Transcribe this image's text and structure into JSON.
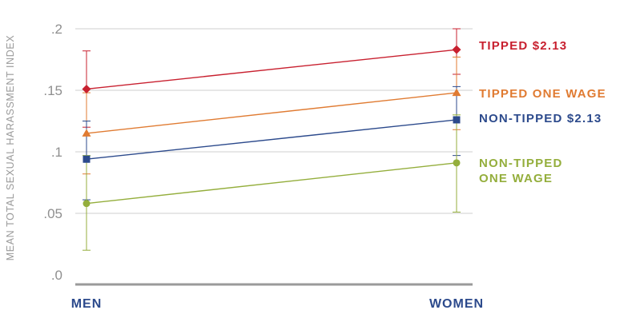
{
  "chart_data": {
    "type": "line",
    "ylabel": "MEAN TOTAL SEXUAL HARASSMENT INDEX",
    "xlabel": "",
    "categories": [
      "MEN",
      "WOMEN"
    ],
    "ylim": [
      0,
      0.2
    ],
    "yticks": [
      {
        "value": 0,
        "label": ".0"
      },
      {
        "value": 0.05,
        "label": ".05"
      },
      {
        "value": 0.1,
        "label": ".1"
      },
      {
        "value": 0.15,
        "label": ".15"
      },
      {
        "value": 0.2,
        "label": ".2"
      }
    ],
    "grid": true,
    "legend": "right",
    "series": [
      {
        "name": "TIPPED $2.13",
        "label_lines": [
          "TIPPED $2.13"
        ],
        "color": "#c8202f",
        "marker": "diamond",
        "values": [
          0.151,
          0.183
        ],
        "error_low": [
          0.12,
          0.163
        ],
        "error_high": [
          0.182,
          0.2
        ]
      },
      {
        "name": "TIPPED ONE WAGE",
        "label_lines": [
          "TIPPED ONE WAGE"
        ],
        "color": "#e07b32",
        "marker": "triangle",
        "values": [
          0.115,
          0.148
        ],
        "error_low": [
          0.082,
          0.118
        ],
        "error_high": [
          0.148,
          0.177
        ]
      },
      {
        "name": "NON-TIPPED $2.13",
        "label_lines": [
          "NON-TIPPED $2.13"
        ],
        "color": "#2c4a8c",
        "marker": "square",
        "values": [
          0.094,
          0.126
        ],
        "error_low": [
          0.061,
          0.097
        ],
        "error_high": [
          0.125,
          0.153
        ]
      },
      {
        "name": "NON-TIPPED ONE WAGE",
        "label_lines": [
          "NON-TIPPED",
          "ONE WAGE"
        ],
        "color": "#94ae3c",
        "marker": "circle",
        "values": [
          0.058,
          0.091
        ],
        "error_low": [
          0.02,
          0.051
        ],
        "error_high": [
          0.097,
          0.13
        ]
      }
    ]
  }
}
